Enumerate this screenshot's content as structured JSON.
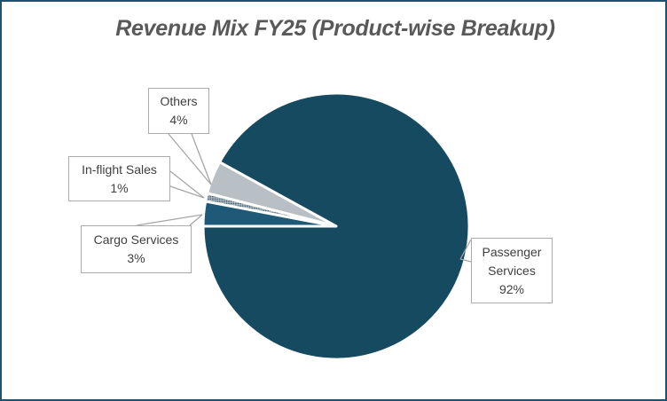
{
  "chart_title": "Revenue Mix FY25 (Product-wise Breakup)",
  "chart_data": {
    "type": "pie",
    "title": "Revenue Mix FY25 (Product-wise Breakup)",
    "unit": "%",
    "slices": [
      {
        "label": "Passenger Services",
        "value": 92,
        "pct_label": "92%",
        "fill": "solid",
        "color": "#164A61"
      },
      {
        "label": "Cargo Services",
        "value": 3,
        "pct_label": "3%",
        "fill": "solid",
        "color": "#1E5A78"
      },
      {
        "label": "In-flight Sales",
        "value": 1,
        "pct_label": "1%",
        "fill": "pattern-dots",
        "color": "#AEB8BD",
        "pattern_dot_color": "#2F5468"
      },
      {
        "label": "Others",
        "value": 4,
        "pct_label": "4%",
        "fill": "solid",
        "color": "#B9C0C5"
      }
    ],
    "layout": {
      "start_angle_deg": 270,
      "clockwise": true,
      "draw_order": [
        "Cargo Services",
        "In-flight Sales",
        "Others",
        "Passenger Services"
      ],
      "data_labels": "callout boxes with category name and percentage",
      "legend": "none"
    },
    "colors": {
      "frame_border": "#1D5270",
      "slice_separator": "#FFFFFF",
      "callout_border": "#ABABAB",
      "callout_text": "#3F3F3F",
      "leader_line": "#A6A6A6",
      "title_color": "#595959",
      "background": "#FFFFFF"
    }
  }
}
